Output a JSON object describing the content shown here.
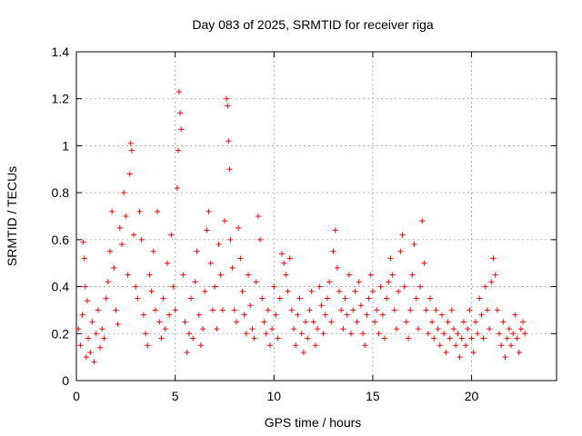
{
  "chart_data": {
    "type": "scatter",
    "title": "Day 083 of 2025, SRMTID for receiver riga",
    "xlabel": "GPS time / hours",
    "ylabel": "SRMTID / TECUs",
    "xlim": [
      0,
      24.3
    ],
    "ylim": [
      0,
      1.4
    ],
    "xticks": [
      0,
      5,
      10,
      15,
      20
    ],
    "yticks": [
      0,
      0.2,
      0.4,
      0.6,
      0.8,
      1,
      1.2,
      1.4
    ],
    "grid": true,
    "marker": "plus",
    "color": "#ff0000",
    "series": [
      {
        "name": "SRMTID",
        "points": [
          [
            0.1,
            0.22
          ],
          [
            0.2,
            0.15
          ],
          [
            0.3,
            0.28
          ],
          [
            0.35,
            0.59
          ],
          [
            0.4,
            0.52
          ],
          [
            0.45,
            0.4
          ],
          [
            0.5,
            0.1
          ],
          [
            0.55,
            0.34
          ],
          [
            0.6,
            0.18
          ],
          [
            0.7,
            0.12
          ],
          [
            0.8,
            0.25
          ],
          [
            0.9,
            0.08
          ],
          [
            1.0,
            0.2
          ],
          [
            1.1,
            0.3
          ],
          [
            1.2,
            0.14
          ],
          [
            1.3,
            0.22
          ],
          [
            1.4,
            0.18
          ],
          [
            1.5,
            0.35
          ],
          [
            1.6,
            0.42
          ],
          [
            1.7,
            0.55
          ],
          [
            1.8,
            0.72
          ],
          [
            1.9,
            0.48
          ],
          [
            2.0,
            0.3
          ],
          [
            2.1,
            0.24
          ],
          [
            2.2,
            0.65
          ],
          [
            2.3,
            0.58
          ],
          [
            2.4,
            0.8
          ],
          [
            2.5,
            0.7
          ],
          [
            2.6,
            0.45
          ],
          [
            2.7,
            0.88
          ],
          [
            2.75,
            1.01
          ],
          [
            2.8,
            0.98
          ],
          [
            2.9,
            0.62
          ],
          [
            3.0,
            0.4
          ],
          [
            3.1,
            0.35
          ],
          [
            3.2,
            0.72
          ],
          [
            3.3,
            0.6
          ],
          [
            3.4,
            0.28
          ],
          [
            3.5,
            0.2
          ],
          [
            3.6,
            0.15
          ],
          [
            3.7,
            0.45
          ],
          [
            3.8,
            0.38
          ],
          [
            3.9,
            0.55
          ],
          [
            4.0,
            0.3
          ],
          [
            4.1,
            0.72
          ],
          [
            4.2,
            0.25
          ],
          [
            4.3,
            0.18
          ],
          [
            4.4,
            0.35
          ],
          [
            4.5,
            0.22
          ],
          [
            4.6,
            0.5
          ],
          [
            4.7,
            0.28
          ],
          [
            4.8,
            0.62
          ],
          [
            4.9,
            0.4
          ],
          [
            5.0,
            0.3
          ],
          [
            5.1,
            0.82
          ],
          [
            5.15,
            0.98
          ],
          [
            5.2,
            1.23
          ],
          [
            5.25,
            1.14
          ],
          [
            5.3,
            1.07
          ],
          [
            5.4,
            0.45
          ],
          [
            5.5,
            0.25
          ],
          [
            5.6,
            0.12
          ],
          [
            5.7,
            0.2
          ],
          [
            5.8,
            0.35
          ],
          [
            5.9,
            0.18
          ],
          [
            6.0,
            0.42
          ],
          [
            6.1,
            0.55
          ],
          [
            6.2,
            0.28
          ],
          [
            6.3,
            0.15
          ],
          [
            6.4,
            0.22
          ],
          [
            6.5,
            0.38
          ],
          [
            6.6,
            0.64
          ],
          [
            6.7,
            0.72
          ],
          [
            6.8,
            0.5
          ],
          [
            6.9,
            0.3
          ],
          [
            7.0,
            0.4
          ],
          [
            7.1,
            0.22
          ],
          [
            7.2,
            0.58
          ],
          [
            7.3,
            0.45
          ],
          [
            7.4,
            0.3
          ],
          [
            7.5,
            0.68
          ],
          [
            7.6,
            1.2
          ],
          [
            7.65,
            1.17
          ],
          [
            7.7,
            1.02
          ],
          [
            7.75,
            0.9
          ],
          [
            7.8,
            0.6
          ],
          [
            7.9,
            0.48
          ],
          [
            8.0,
            0.3
          ],
          [
            8.1,
            0.25
          ],
          [
            8.2,
            0.65
          ],
          [
            8.3,
            0.52
          ],
          [
            8.4,
            0.38
          ],
          [
            8.5,
            0.28
          ],
          [
            8.6,
            0.2
          ],
          [
            8.7,
            0.45
          ],
          [
            8.8,
            0.32
          ],
          [
            8.9,
            0.22
          ],
          [
            9.0,
            0.18
          ],
          [
            9.1,
            0.42
          ],
          [
            9.2,
            0.7
          ],
          [
            9.3,
            0.6
          ],
          [
            9.4,
            0.35
          ],
          [
            9.5,
            0.25
          ],
          [
            9.6,
            0.2
          ],
          [
            9.7,
            0.3
          ],
          [
            9.8,
            0.15
          ],
          [
            9.9,
            0.22
          ],
          [
            10.0,
            0.4
          ],
          [
            10.1,
            0.28
          ],
          [
            10.2,
            0.18
          ],
          [
            10.3,
            0.35
          ],
          [
            10.4,
            0.54
          ],
          [
            10.5,
            0.5
          ],
          [
            10.6,
            0.45
          ],
          [
            10.7,
            0.38
          ],
          [
            10.8,
            0.52
          ],
          [
            10.9,
            0.3
          ],
          [
            11.0,
            0.22
          ],
          [
            11.1,
            0.15
          ],
          [
            11.2,
            0.28
          ],
          [
            11.3,
            0.35
          ],
          [
            11.4,
            0.2
          ],
          [
            11.5,
            0.12
          ],
          [
            11.6,
            0.25
          ],
          [
            11.7,
            0.18
          ],
          [
            11.8,
            0.3
          ],
          [
            11.9,
            0.38
          ],
          [
            12.0,
            0.25
          ],
          [
            12.1,
            0.15
          ],
          [
            12.2,
            0.22
          ],
          [
            12.3,
            0.4
          ],
          [
            12.4,
            0.32
          ],
          [
            12.5,
            0.2
          ],
          [
            12.6,
            0.28
          ],
          [
            12.7,
            0.35
          ],
          [
            12.8,
            0.42
          ],
          [
            12.9,
            0.25
          ],
          [
            13.0,
            0.55
          ],
          [
            13.1,
            0.64
          ],
          [
            13.2,
            0.48
          ],
          [
            13.3,
            0.38
          ],
          [
            13.4,
            0.3
          ],
          [
            13.5,
            0.22
          ],
          [
            13.6,
            0.35
          ],
          [
            13.7,
            0.28
          ],
          [
            13.8,
            0.45
          ],
          [
            13.9,
            0.2
          ],
          [
            14.0,
            0.3
          ],
          [
            14.1,
            0.38
          ],
          [
            14.2,
            0.25
          ],
          [
            14.3,
            0.42
          ],
          [
            14.4,
            0.32
          ],
          [
            14.5,
            0.2
          ],
          [
            14.6,
            0.15
          ],
          [
            14.7,
            0.28
          ],
          [
            14.8,
            0.35
          ],
          [
            14.9,
            0.45
          ],
          [
            15.0,
            0.38
          ],
          [
            15.1,
            0.25
          ],
          [
            15.2,
            0.3
          ],
          [
            15.3,
            0.2
          ],
          [
            15.4,
            0.4
          ],
          [
            15.5,
            0.28
          ],
          [
            15.6,
            0.18
          ],
          [
            15.7,
            0.35
          ],
          [
            15.8,
            0.42
          ],
          [
            15.9,
            0.52
          ],
          [
            16.0,
            0.45
          ],
          [
            16.1,
            0.3
          ],
          [
            16.2,
            0.22
          ],
          [
            16.3,
            0.38
          ],
          [
            16.4,
            0.55
          ],
          [
            16.5,
            0.62
          ],
          [
            16.6,
            0.4
          ],
          [
            16.7,
            0.25
          ],
          [
            16.8,
            0.18
          ],
          [
            16.9,
            0.3
          ],
          [
            17.0,
            0.45
          ],
          [
            17.1,
            0.58
          ],
          [
            17.2,
            0.35
          ],
          [
            17.3,
            0.22
          ],
          [
            17.4,
            0.4
          ],
          [
            17.5,
            0.68
          ],
          [
            17.6,
            0.5
          ],
          [
            17.7,
            0.3
          ],
          [
            17.8,
            0.2
          ],
          [
            17.9,
            0.35
          ],
          [
            18.0,
            0.25
          ],
          [
            18.1,
            0.18
          ],
          [
            18.2,
            0.3
          ],
          [
            18.3,
            0.22
          ],
          [
            18.4,
            0.15
          ],
          [
            18.5,
            0.28
          ],
          [
            18.6,
            0.2
          ],
          [
            18.7,
            0.12
          ],
          [
            18.8,
            0.25
          ],
          [
            18.9,
            0.18
          ],
          [
            19.0,
            0.3
          ],
          [
            19.1,
            0.22
          ],
          [
            19.2,
            0.15
          ],
          [
            19.3,
            0.2
          ],
          [
            19.4,
            0.1
          ],
          [
            19.5,
            0.18
          ],
          [
            19.6,
            0.25
          ],
          [
            19.7,
            0.15
          ],
          [
            19.8,
            0.22
          ],
          [
            19.9,
            0.3
          ],
          [
            20.0,
            0.18
          ],
          [
            20.1,
            0.12
          ],
          [
            20.2,
            0.25
          ],
          [
            20.3,
            0.2
          ],
          [
            20.4,
            0.35
          ],
          [
            20.5,
            0.28
          ],
          [
            20.6,
            0.18
          ],
          [
            20.7,
            0.4
          ],
          [
            20.8,
            0.3
          ],
          [
            20.9,
            0.22
          ],
          [
            21.0,
            0.42
          ],
          [
            21.1,
            0.52
          ],
          [
            21.2,
            0.45
          ],
          [
            21.3,
            0.3
          ],
          [
            21.4,
            0.2
          ],
          [
            21.5,
            0.15
          ],
          [
            21.6,
            0.25
          ],
          [
            21.7,
            0.1
          ],
          [
            21.8,
            0.18
          ],
          [
            21.9,
            0.22
          ],
          [
            22.0,
            0.15
          ],
          [
            22.1,
            0.2
          ],
          [
            22.2,
            0.28
          ],
          [
            22.3,
            0.18
          ],
          [
            22.4,
            0.12
          ],
          [
            22.5,
            0.22
          ],
          [
            22.6,
            0.25
          ],
          [
            22.7,
            0.2
          ]
        ]
      }
    ]
  }
}
